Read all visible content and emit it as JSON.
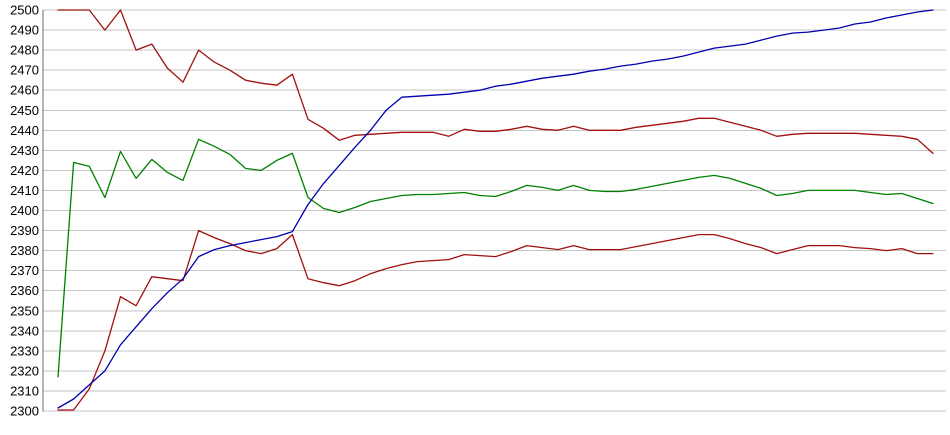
{
  "window": {
    "background_color": "#ffffff"
  },
  "chart_data": {
    "type": "line",
    "title": "",
    "xlabel": "",
    "ylabel": "",
    "legend": {
      "visible": false
    },
    "grid": {
      "horizontal": true,
      "vertical": false,
      "color": "#c6c6c6"
    },
    "axis_color": "#6b6b6b",
    "tick_label_color": "#000000",
    "y_axis": {
      "min": 2300,
      "max": 2500,
      "step": 10,
      "tick_labels": [
        "2500",
        "2490",
        "2480",
        "2470",
        "2460",
        "2450",
        "2440",
        "2430",
        "2420",
        "2410",
        "2400",
        "2390",
        "2380",
        "2370",
        "2360",
        "2350",
        "2340",
        "2330",
        "2320",
        "2310",
        "2300"
      ]
    },
    "x_axis": {
      "tick_labels_visible": false,
      "point_count": 57
    },
    "layout": {
      "plot_top": 10,
      "plot_bottom": 411,
      "axis_x": 43,
      "x_start": 58,
      "x_end": 933,
      "grid_right": 946,
      "label_right": 39,
      "font_px": 13
    },
    "series": [
      {
        "name": "upper-red",
        "color": "#a01010",
        "width": 1.3,
        "values": [
          2500,
          2500,
          2500,
          2490,
          2500,
          2480,
          2483,
          2471,
          2464,
          2480,
          2474,
          2470,
          2465,
          2463.5,
          2462.5,
          2468,
          2445.5,
          2441,
          2435,
          2437.5,
          2438,
          2438.5,
          2439,
          2439,
          2439,
          2437,
          2440.5,
          2439.5,
          2439.5,
          2440.5,
          2442,
          2440.5,
          2440,
          2442,
          2440,
          2440,
          2440,
          2441.5,
          2442.5,
          2443.5,
          2444.5,
          2446,
          2446,
          2444,
          2442,
          2440,
          2437,
          2438,
          2438.5,
          2438.5,
          2438.5,
          2438.5,
          2438,
          2437.5,
          2437,
          2435.5,
          2428.5
        ]
      },
      {
        "name": "green-mid",
        "color": "#008000",
        "width": 1.3,
        "values": [
          2317,
          2424,
          2422,
          2406.5,
          2429.5,
          2416,
          2425.5,
          2419,
          2415,
          2435.5,
          2432,
          2428,
          2421,
          2420,
          2425,
          2428.5,
          2406.5,
          2401,
          2399,
          2401.5,
          2404.5,
          2406,
          2407.5,
          2408,
          2408,
          2408.5,
          2409,
          2407.5,
          2407,
          2409.5,
          2412.5,
          2411.5,
          2410,
          2412.5,
          2410,
          2409.5,
          2409.5,
          2410.5,
          2412,
          2413.5,
          2415,
          2416.5,
          2417.5,
          2416,
          2413.5,
          2411,
          2407.5,
          2408.5,
          2410,
          2410,
          2410,
          2410,
          2409,
          2408,
          2408.5,
          2406,
          2403.5
        ]
      },
      {
        "name": "lower-red",
        "color": "#a01010",
        "width": 1.3,
        "values": [
          2300.5,
          2300.5,
          2311,
          2330,
          2357,
          2352.5,
          2367,
          2366,
          2365,
          2390,
          2386.5,
          2383.5,
          2380,
          2378.5,
          2381,
          2388,
          2366,
          2364,
          2362.5,
          2365,
          2368.5,
          2371,
          2373,
          2374.5,
          2375,
          2375.5,
          2378,
          2377.5,
          2377,
          2379.5,
          2382.5,
          2381.5,
          2380.5,
          2382.5,
          2380.5,
          2380.5,
          2380.5,
          2382,
          2383.5,
          2385,
          2386.5,
          2388,
          2388,
          2386,
          2383.5,
          2381.5,
          2378.5,
          2380.5,
          2382.5,
          2382.5,
          2382.5,
          2381.5,
          2381,
          2380,
          2381,
          2378.5,
          2378.5
        ]
      },
      {
        "name": "blue-rising",
        "color": "#0000b0",
        "width": 1.3,
        "values": [
          2301.5,
          2306,
          2313,
          2320,
          2333,
          2342,
          2351,
          2359,
          2366,
          2377,
          2380.5,
          2382.5,
          2384,
          2385.5,
          2387,
          2389.5,
          2403,
          2413.5,
          2422.5,
          2431.5,
          2440,
          2450,
          2456.5,
          2457,
          2457.5,
          2458,
          2459,
          2460,
          2462,
          2463,
          2464.5,
          2466,
          2467,
          2468,
          2469.5,
          2470.5,
          2472,
          2473,
          2474.5,
          2475.5,
          2477,
          2479,
          2481,
          2482,
          2483,
          2485,
          2487,
          2488.5,
          2489,
          2490,
          2491,
          2493,
          2494,
          2496,
          2497.5,
          2499,
          2500
        ]
      }
    ]
  }
}
